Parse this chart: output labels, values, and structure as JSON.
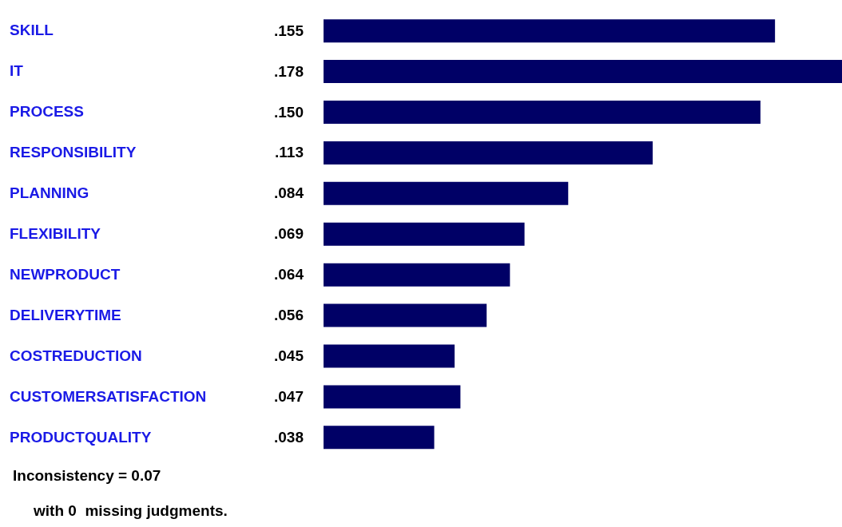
{
  "chart_data": {
    "type": "bar",
    "orientation": "horizontal",
    "categories": [
      "SKILL",
      "IT",
      "PROCESS",
      "RESPONSIBILITY",
      "PLANNING",
      "FLEXIBILITY",
      "NEWPRODUCT",
      "DELIVERYTIME",
      "COSTREDUCTION",
      "CUSTOMERSATISFACTION",
      "PRODUCTQUALITY"
    ],
    "values": [
      0.155,
      0.178,
      0.15,
      0.113,
      0.084,
      0.069,
      0.064,
      0.056,
      0.045,
      0.047,
      0.038
    ],
    "value_labels": [
      ".155",
      ".178",
      ".150",
      ".113",
      ".084",
      ".069",
      ".064",
      ".056",
      ".045",
      ".047",
      ".038"
    ],
    "color": "#000066",
    "annotations": [
      "Inconsistency = 0.07",
      "with 0  missing judgments."
    ]
  }
}
